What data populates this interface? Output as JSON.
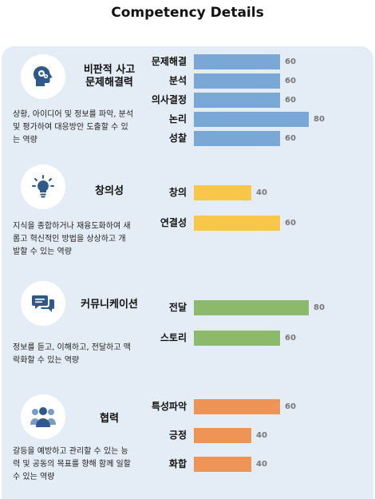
{
  "title": "Competency Details",
  "max_value": 100,
  "colors": {
    "blue": "#7aa8d6",
    "yellow": "#f8c74a",
    "green": "#8cba6a",
    "orange": "#ef9457"
  },
  "sections": [
    {
      "icon": "head-gears-icon",
      "title": "비판적 사고\n문제해결력",
      "desc": "상황, 아이디어 및 정보를 파악, 분석\n및 평가하여 대응방안 도출할 수 있\n는 역량",
      "color": "#7aa8d6",
      "bars": [
        {
          "label": "문제해결",
          "value": 60
        },
        {
          "label": "분석",
          "value": 60
        },
        {
          "label": "의사결정",
          "value": 60
        },
        {
          "label": "논리",
          "value": 80
        },
        {
          "label": "성찰",
          "value": 60
        }
      ]
    },
    {
      "icon": "lightbulb-icon",
      "title": "창의성",
      "desc": "지식을 종합하거나 재융도화하여 새\n롭고 혁신적인 방법을 상상하고 개\n발할 수 있는 역량",
      "color": "#f8c74a",
      "bars": [
        {
          "label": "창의",
          "value": 40
        },
        {
          "label": "연결성",
          "value": 60
        }
      ]
    },
    {
      "icon": "chat-bubbles-icon",
      "title": "커뮤니케이션",
      "desc": "정보를 듣고, 이해하고, 전달하고 맥\n락화할 수 있는 역량",
      "color": "#8cba6a",
      "bars": [
        {
          "label": "전달",
          "value": 80
        },
        {
          "label": "스토리",
          "value": 60
        }
      ]
    },
    {
      "icon": "team-people-icon",
      "title": "협력",
      "desc": "갈등을 예방하고 관리할 수 있는 능\n력 및 공동의 목표를 향해 함께 일할\n수 있는 역량",
      "color": "#ef9457",
      "bars": [
        {
          "label": "특성파악",
          "value": 60
        },
        {
          "label": "긍정",
          "value": 40
        },
        {
          "label": "화합",
          "value": 40
        }
      ]
    }
  ]
}
